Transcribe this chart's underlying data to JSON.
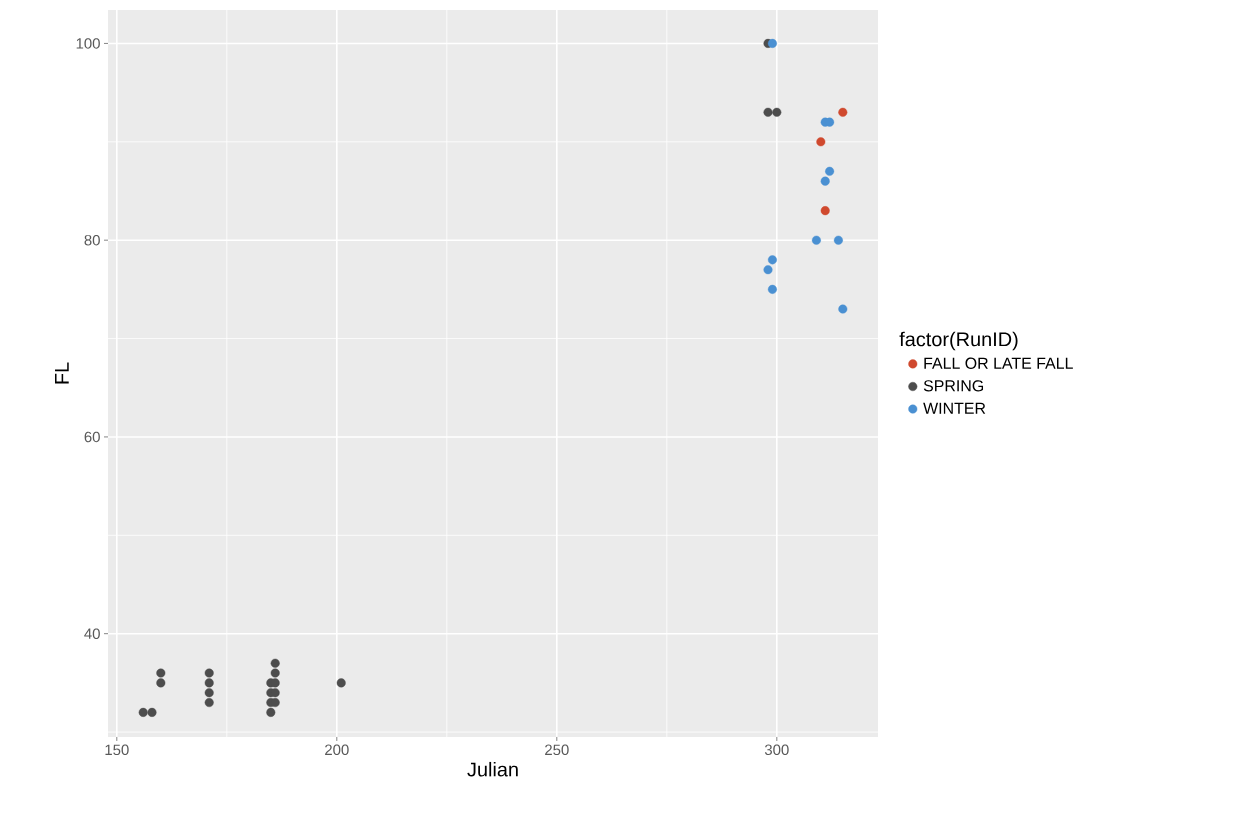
{
  "chart_data": {
    "type": "scatter",
    "xlabel": "Julian",
    "ylabel": "FL",
    "legend_title": "factor(RunID)",
    "xlim": [
      148,
      323
    ],
    "ylim": [
      29.5,
      103.4
    ],
    "xticks": [
      150,
      200,
      250,
      300
    ],
    "yticks": [
      40,
      60,
      80,
      100
    ],
    "grid": true,
    "legend": "right",
    "marker": "circle",
    "series": [
      {
        "name": "FALL OR LATE FALL",
        "color": "#d0492e",
        "x": [
          315,
          310,
          311
        ],
        "values": [
          93,
          90,
          83
        ]
      },
      {
        "name": "SPRING",
        "color": "#4d4d4d",
        "x": [
          156,
          158,
          160,
          160,
          171,
          171,
          171,
          171,
          185,
          185,
          185,
          185,
          186,
          186,
          186,
          186,
          186,
          201,
          298,
          298,
          300
        ],
        "values": [
          32,
          32,
          35,
          36,
          33,
          34,
          35,
          36,
          32,
          33,
          34,
          35,
          33,
          34,
          35,
          36,
          37,
          35,
          100,
          93,
          93
        ]
      },
      {
        "name": "WINTER",
        "color": "#4a90d2",
        "x": [
          299,
          311,
          312,
          311,
          312,
          309,
          314,
          298,
          299,
          299,
          315
        ],
        "values": [
          100,
          92,
          92,
          86,
          87,
          80,
          80,
          77,
          78,
          75,
          73
        ]
      }
    ]
  }
}
